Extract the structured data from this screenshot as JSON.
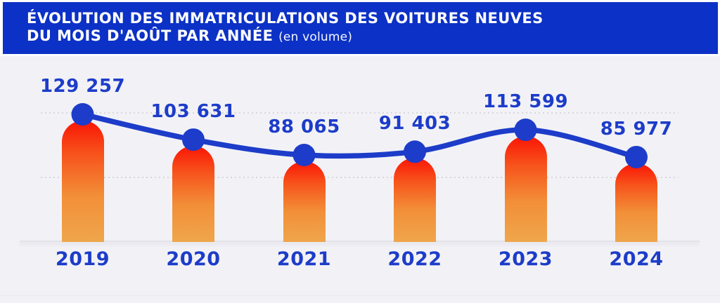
{
  "header": {
    "title_line1": "ÉVOLUTION DES IMMATRICULATIONS DES VOITURES NEUVES",
    "title_line2": "DU MOIS D'AOÛT PAR ANNÉE",
    "title_suffix": "(en volume)"
  },
  "chart_data": {
    "type": "bar",
    "overlay": "line",
    "title": "Évolution des immatriculations des voitures neuves du mois d'août par année (en volume)",
    "categories": [
      "2019",
      "2020",
      "2021",
      "2022",
      "2023",
      "2024"
    ],
    "values": [
      129257,
      103631,
      88065,
      91403,
      113599,
      85977
    ],
    "value_labels": [
      "129 257",
      "103 631",
      "88 065",
      "91 403",
      "113 599",
      "85 977"
    ],
    "xlabel": "",
    "ylabel": "",
    "ylim": [
      0,
      137000
    ],
    "grid": "horizontal-dotted",
    "legend": "none"
  },
  "colors": {
    "header_background": "#0c31c6",
    "header_text": "#ffffff",
    "accent_blue": "#1d3cc9",
    "background": "#f2f2f6",
    "gridline": "#d6d6dd",
    "baseline": "#e2e2e8",
    "bar_gradient_top": "#fa1505",
    "bar_gradient_mid1": "#f7541c",
    "bar_gradient_mid2": "#f28f38",
    "bar_gradient_bottom": "#efa64c"
  }
}
